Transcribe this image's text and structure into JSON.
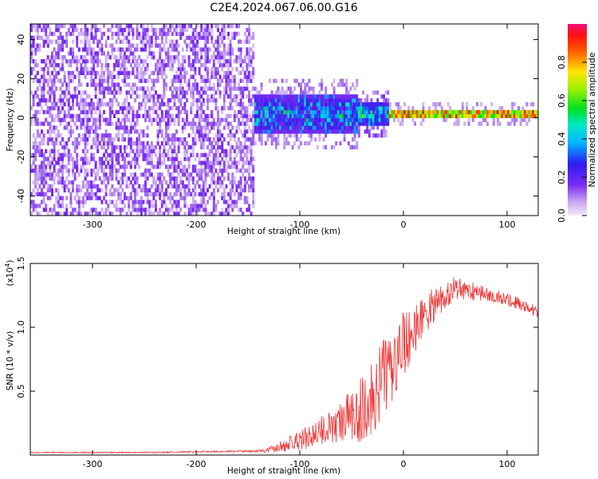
{
  "title": "C2E4.2024.067.06.00.G16",
  "chart_data": [
    {
      "type": "heatmap",
      "xlabel": "Height of straight line (km)",
      "ylabel": "Frequency (Hz)",
      "xlim": [
        -360,
        130
      ],
      "ylim": [
        -50,
        48
      ],
      "x_ticks": [
        -300,
        -200,
        -100,
        0,
        100
      ],
      "x_tick_labels": [
        "-300",
        "-200",
        "-100",
        "0",
        "100"
      ],
      "y_ticks": [
        -40,
        -20,
        0,
        20,
        40
      ],
      "y_tick_labels": [
        "-40",
        "-20",
        "0",
        "20",
        "40"
      ],
      "colorbar": {
        "label": "Normalized spectral amplitude",
        "range": [
          0,
          1
        ],
        "ticks": [
          0,
          0.2,
          0.4,
          0.6,
          0.8
        ],
        "tick_labels": [
          "0.0",
          "0.2",
          "0.4",
          "0.6",
          "0.8"
        ],
        "colormap": "rainbow (white-lavender to violet, blue, cyan, green, yellow, red, magenta)"
      },
      "regions": [
        {
          "x_range": [
            -360,
            -145
          ],
          "freq_range": [
            -50,
            48
          ],
          "amplitude": "low (0.0-0.2), scattered noise"
        },
        {
          "x_range": [
            -140,
            -45
          ],
          "freq_center": 1,
          "freq_halfwidth": 10,
          "amplitude": "0.2-0.5"
        },
        {
          "x_range": [
            -45,
            -15
          ],
          "freq_center": 0,
          "freq_halfwidth": 6,
          "amplitude": "0.3-0.6"
        },
        {
          "x_range": [
            -15,
            130
          ],
          "freq_center": 1,
          "freq_halfwidth": 2,
          "amplitude": "0.5-1.0"
        }
      ],
      "grid": false
    },
    {
      "type": "line",
      "xlabel": "Height of straight line (km)",
      "ylabel": "SNR (10 * v/v)",
      "y_multiplier_label": "(x10",
      "y_multiplier_exp": "4",
      "y_multiplier_close": ")",
      "xlim": [
        -360,
        130
      ],
      "ylim": [
        0,
        1.5
      ],
      "x_ticks": [
        -300,
        -200,
        -100,
        0,
        100
      ],
      "x_tick_labels": [
        "-300",
        "-200",
        "-100",
        "0",
        "100"
      ],
      "y_ticks": [
        0.5,
        1.0,
        1.5
      ],
      "y_tick_labels": [
        "0.5",
        "1.0",
        "1.5"
      ],
      "series": [
        {
          "color": "#ee3333",
          "x": [
            -360,
            -300,
            -250,
            -200,
            -160,
            -140,
            -130,
            -120,
            -110,
            -100,
            -90,
            -80,
            -70,
            -60,
            -50,
            -40,
            -30,
            -20,
            -10,
            0,
            10,
            20,
            30,
            40,
            50,
            60,
            70,
            80,
            90,
            100,
            110,
            120,
            130
          ],
          "y": [
            0.02,
            0.02,
            0.02,
            0.025,
            0.03,
            0.03,
            0.04,
            0.06,
            0.09,
            0.12,
            0.15,
            0.19,
            0.22,
            0.26,
            0.3,
            0.36,
            0.46,
            0.58,
            0.72,
            0.86,
            0.98,
            1.1,
            1.18,
            1.26,
            1.3,
            1.3,
            1.28,
            1.26,
            1.24,
            1.22,
            1.19,
            1.16,
            1.12
          ],
          "noise_amplitude": [
            0.005,
            0.005,
            0.005,
            0.006,
            0.008,
            0.01,
            0.02,
            0.04,
            0.06,
            0.08,
            0.1,
            0.12,
            0.15,
            0.18,
            0.22,
            0.26,
            0.3,
            0.32,
            0.3,
            0.26,
            0.2,
            0.16,
            0.14,
            0.12,
            0.1,
            0.08,
            0.07,
            0.06,
            0.05,
            0.05,
            0.05,
            0.05,
            0.05
          ]
        }
      ],
      "grid": false
    }
  ]
}
